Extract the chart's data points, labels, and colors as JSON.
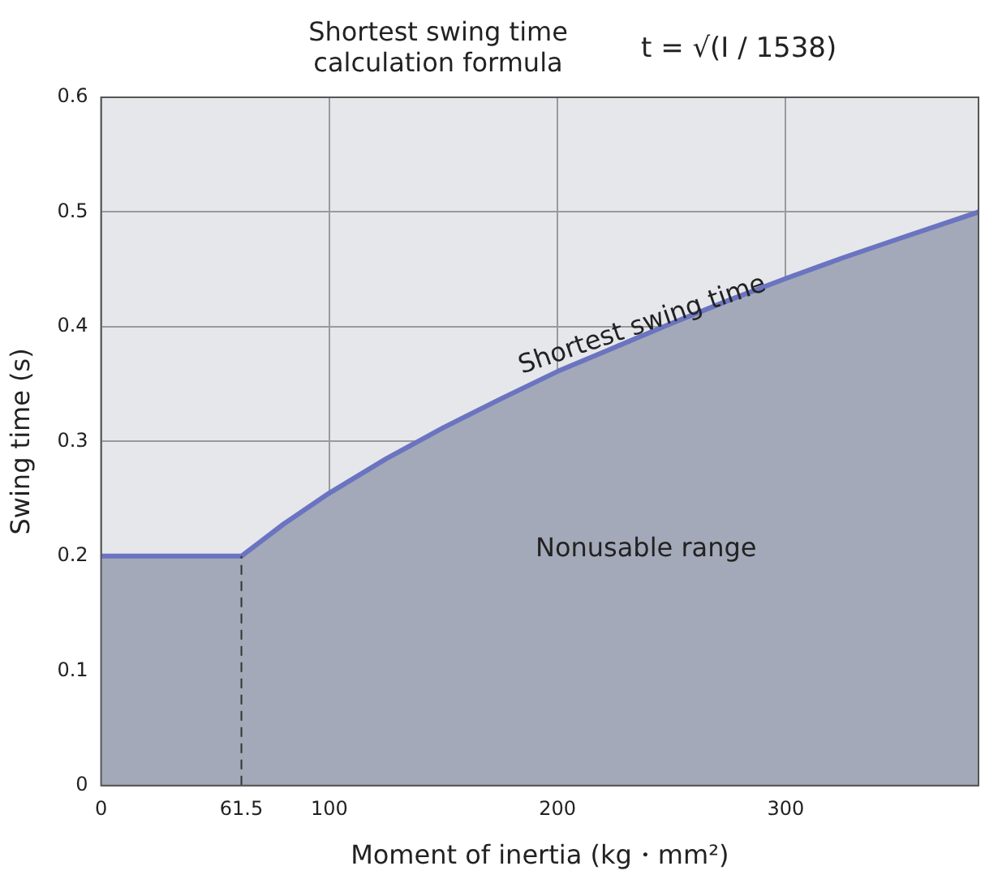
{
  "chart_data": {
    "type": "area",
    "title": "Shortest swing time calculation formula",
    "xlabel": "Moment of inertia (kg・mm²)",
    "ylabel": "Swing time (s)",
    "x": [
      0,
      61.5,
      80,
      100,
      125,
      150,
      175,
      200,
      225,
      250,
      275,
      300,
      325,
      350,
      384.5
    ],
    "series": [
      {
        "color": "#6b74c0",
        "values": [
          0.2,
          0.2,
          0.228,
          0.255,
          0.285,
          0.312,
          0.337,
          0.361,
          0.382,
          0.403,
          0.423,
          0.442,
          0.46,
          0.477,
          0.5
        ]
      }
    ],
    "xlim": [
      0,
      384.5
    ],
    "xticks": [
      0,
      61.5,
      100,
      200,
      300
    ],
    "ylim": [
      0,
      0.6
    ],
    "yticks": [
      0,
      0.1,
      0.2,
      0.3,
      0.4,
      0.5,
      0.6
    ],
    "grid": true,
    "legend": false,
    "marker": "none",
    "line_style": "solid",
    "ref_lines": [
      {
        "axis": "x",
        "value": 61.5,
        "line_style": "dashed",
        "color": "#333333"
      }
    ],
    "annotations": [
      "t = √(I / 1538)",
      {
        "text": "Shortest swing time",
        "x": 240,
        "y": 0.385
      },
      "Nonusable range"
    ]
  }
}
